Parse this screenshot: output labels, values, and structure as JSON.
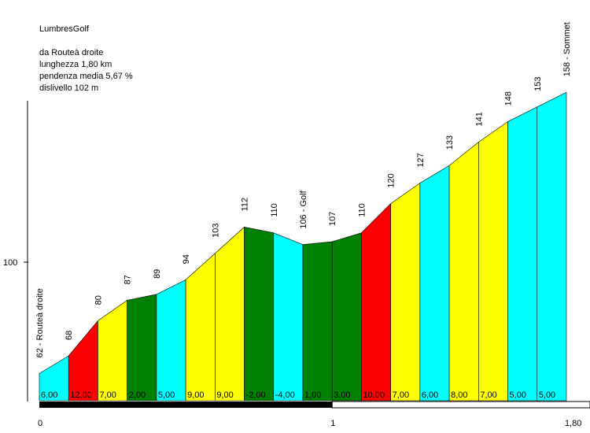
{
  "header": {
    "title": "LumbresGolf",
    "lines": [
      "da Routeà droite",
      "lunghezza 1,80 km",
      "pendenza media 5,67 %",
      "dislivello 102 m"
    ]
  },
  "chart_data": {
    "type": "area",
    "x_km": [
      0,
      0.1,
      0.2,
      0.3,
      0.4,
      0.5,
      0.6,
      0.7,
      0.8,
      0.9,
      1.0,
      1.1,
      1.2,
      1.3,
      1.4,
      1.5,
      1.6,
      1.7,
      1.8
    ],
    "elevation_labels": [
      "62 - Routeà droite",
      "68",
      "80",
      "87",
      "89",
      "94",
      "103",
      "112",
      "110",
      "106 - Golf",
      "107",
      "110",
      "120",
      "127",
      "133",
      "141",
      "148",
      "153",
      "158 - Sommet"
    ],
    "elevations": [
      62,
      68,
      80,
      87,
      89,
      94,
      103,
      112,
      110,
      106,
      107,
      110,
      120,
      127,
      133,
      141,
      148,
      153,
      158
    ],
    "gradients": [
      "6,00",
      "12,00",
      "7,00",
      "2,00",
      "5,00",
      "9,00",
      "9,00",
      "-2,00",
      "-4,00",
      "1,00",
      "3,00",
      "10,00",
      "7,00",
      "6,00",
      "8,00",
      "7,00",
      "5,00",
      "5,00"
    ],
    "segment_colors": [
      "#00ffff",
      "#ff0000",
      "#ffff00",
      "#008000",
      "#00ffff",
      "#ffff00",
      "#ffff00",
      "#008000",
      "#00ffff",
      "#008000",
      "#008000",
      "#ff0000",
      "#ffff00",
      "#00ffff",
      "#ffff00",
      "#ffff00",
      "#00ffff",
      "#00ffff"
    ],
    "x_ticks": [
      {
        "value": 0,
        "label": "0"
      },
      {
        "value": 1,
        "label": "1"
      },
      {
        "value": 1.8,
        "label": "1,80"
      }
    ],
    "y_ticks": [
      {
        "value": 100,
        "label": "100"
      }
    ],
    "ylim": [
      44,
      166
    ],
    "xlim": [
      0,
      1.8
    ]
  }
}
